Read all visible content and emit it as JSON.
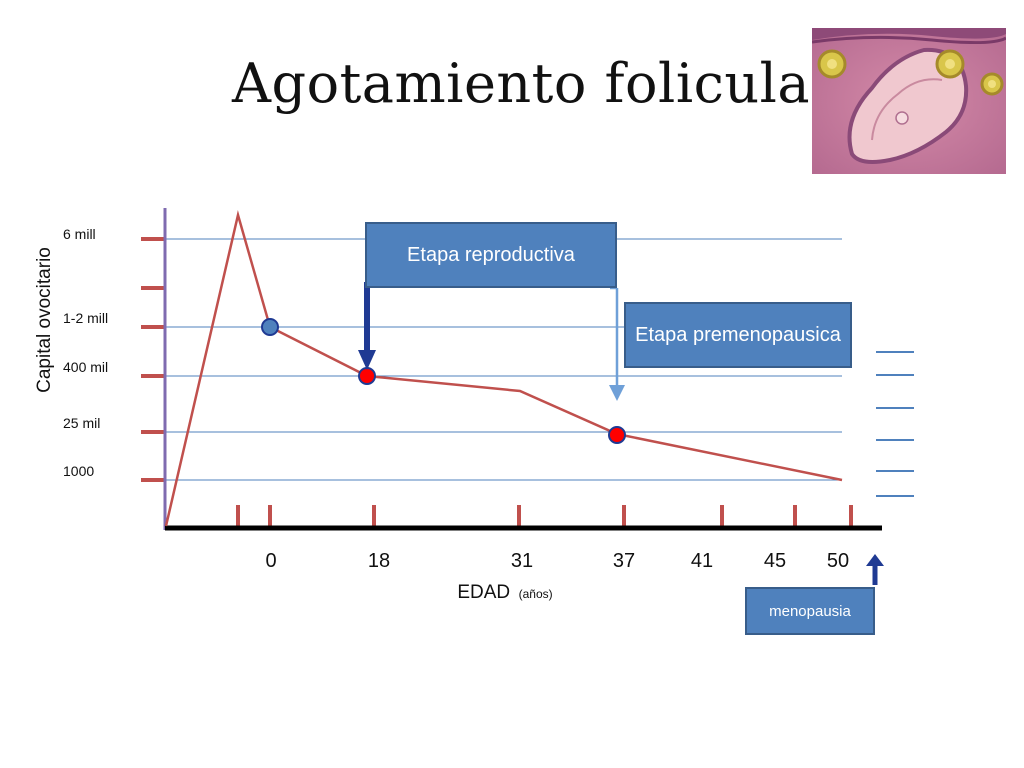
{
  "slide": {
    "title": "Agotamiento folicular",
    "image": "ovarian-follicle-histology"
  },
  "colors": {
    "curve": "#c0504d",
    "point_blue": "#4f81bd",
    "point_red": "#ff0000",
    "gridline": "#4f81bd",
    "y_axis": "#7f6bb0",
    "x_axis": "#000000",
    "box_fill": "#4f81bd",
    "box_border": "#385d8a",
    "arrow_dark": "#1f3a93",
    "arrow_light": "#6fa0d8",
    "tick": "#c0504d"
  },
  "chart_data": {
    "type": "line",
    "title": "",
    "xlabel": "EDAD",
    "xlabel_unit": "(años)",
    "ylabel": "Capital  ovocitario",
    "y_levels": [
      "6 mill",
      "1-2 mill",
      "400 mil",
      "25 mil",
      "1000"
    ],
    "x_ticks": [
      "0",
      "18",
      "31",
      "37",
      "41",
      "45",
      "50"
    ],
    "series": [
      {
        "points": [
          {
            "x": "prenatal-start",
            "y": "0"
          },
          {
            "x": "prenatal-peak",
            "y": "6 mill"
          },
          {
            "x": "0",
            "y": "1-2 mill"
          },
          {
            "x": "18",
            "y": "400 mil"
          },
          {
            "x": "31",
            "y": "400 mil"
          },
          {
            "x": "37",
            "y": "25 mil"
          },
          {
            "x": "50",
            "y": "1000"
          }
        ]
      }
    ],
    "markers": [
      {
        "x": "0",
        "y": "1-2 mill",
        "style": "blue"
      },
      {
        "x": "18",
        "y": "400 mil",
        "style": "red"
      },
      {
        "x": "37",
        "y": "25 mil",
        "style": "red"
      }
    ],
    "grid": true
  },
  "annotations": {
    "etapa_reproductiva": "Etapa reproductiva",
    "etapa_premenopausica": "Etapa premenopausica",
    "menopausia": "menopausia"
  }
}
